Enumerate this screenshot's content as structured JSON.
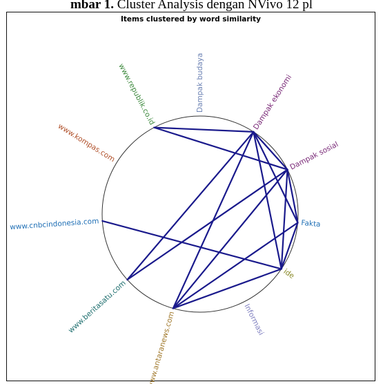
{
  "caption": {
    "prefix": "mbar 1.",
    "text": " Cluster Analysis dengan NVivo 12 pl"
  },
  "diagram": {
    "title": "Items clustered by word similarity",
    "nodes": [
      {
        "id": "budaya",
        "label": "Dampak budaya",
        "color": "#6d83b4"
      },
      {
        "id": "ekonomi",
        "label": "Dampak ekonomi",
        "color": "#7a2a78"
      },
      {
        "id": "sosial",
        "label": "Dampak sosial",
        "color": "#7a2a78"
      },
      {
        "id": "fakta",
        "label": "Fakta",
        "color": "#1f6fb5"
      },
      {
        "id": "ide",
        "label": "ide",
        "color": "#8a8a2a"
      },
      {
        "id": "informasi",
        "label": "Informasi",
        "color": "#8080c0"
      },
      {
        "id": "antara",
        "label": "www.antaranews.com",
        "color": "#a0782a"
      },
      {
        "id": "beritasatu",
        "label": "www.beritasatu.com",
        "color": "#1f6f6f"
      },
      {
        "id": "cnbc",
        "label": "www.cnbcindonesia.com",
        "color": "#1f6fb5"
      },
      {
        "id": "kompas",
        "label": "www.kompas.com",
        "color": "#b0502a"
      },
      {
        "id": "republik",
        "label": "www.republik.co.id",
        "color": "#3e8a3e"
      }
    ],
    "edges": [
      [
        "republik",
        "ekonomi"
      ],
      [
        "republik",
        "sosial"
      ],
      [
        "ekonomi",
        "sosial"
      ],
      [
        "ekonomi",
        "fakta"
      ],
      [
        "ekonomi",
        "ide"
      ],
      [
        "ekonomi",
        "antara"
      ],
      [
        "ekonomi",
        "beritasatu"
      ],
      [
        "sosial",
        "fakta"
      ],
      [
        "sosial",
        "ide"
      ],
      [
        "sosial",
        "antara"
      ],
      [
        "sosial",
        "beritasatu"
      ],
      [
        "fakta",
        "ide"
      ],
      [
        "fakta",
        "antara"
      ],
      [
        "ide",
        "antara"
      ],
      [
        "cnbc",
        "ide"
      ]
    ],
    "edge_color": "#1a1a8c",
    "circle_color": "#333333"
  }
}
